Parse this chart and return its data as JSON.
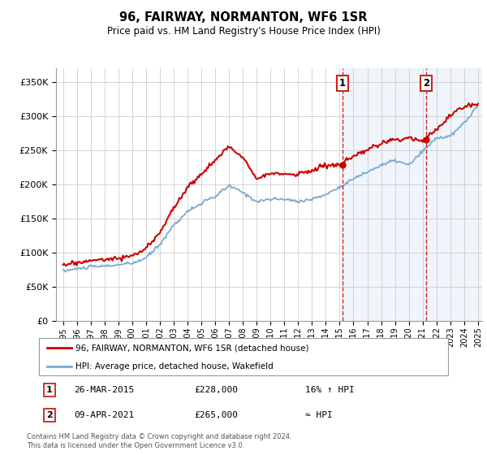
{
  "title": "96, FAIRWAY, NORMANTON, WF6 1SR",
  "subtitle": "Price paid vs. HM Land Registry's House Price Index (HPI)",
  "ylabel_ticks": [
    "£0",
    "£50K",
    "£100K",
    "£150K",
    "£200K",
    "£250K",
    "£300K",
    "£350K"
  ],
  "ytick_values": [
    0,
    50000,
    100000,
    150000,
    200000,
    250000,
    300000,
    350000
  ],
  "ylim": [
    0,
    370000
  ],
  "xlim_start": 1994.5,
  "xlim_end": 2025.3,
  "hpi_color": "#7aaad0",
  "price_color": "#cc0000",
  "marker1_x": 2015.22,
  "marker2_x": 2021.28,
  "marker1_price": 228000,
  "marker2_price": 265000,
  "marker1_date": "26-MAR-2015",
  "marker2_date": "09-APR-2021",
  "marker1_label": "16% ↑ HPI",
  "marker2_label": "≈ HPI",
  "legend_entry1": "96, FAIRWAY, NORMANTON, WF6 1SR (detached house)",
  "legend_entry2": "HPI: Average price, detached house, Wakefield",
  "footer": "Contains HM Land Registry data © Crown copyright and database right 2024.\nThis data is licensed under the Open Government Licence v3.0.",
  "background_color": "#ffffff",
  "plot_bg_color": "#ffffff",
  "shaded_region_color": "#ddeeff",
  "grid_color": "#cccccc",
  "hpi_key_years": [
    1995,
    1996,
    1997,
    1998,
    1999,
    2000,
    2001,
    2002,
    2003,
    2004,
    2005,
    2006,
    2007,
    2008,
    2009,
    2010,
    2011,
    2012,
    2013,
    2014,
    2015,
    2016,
    2017,
    2018,
    2019,
    2020,
    2021,
    2022,
    2023,
    2024,
    2025
  ],
  "hpi_key_vals": [
    73000,
    76000,
    79000,
    80000,
    82000,
    84000,
    92000,
    112000,
    140000,
    160000,
    172000,
    182000,
    198000,
    188000,
    175000,
    178000,
    178000,
    175000,
    178000,
    185000,
    196000,
    208000,
    218000,
    228000,
    235000,
    228000,
    248000,
    268000,
    270000,
    290000,
    315000
  ],
  "price_key_years": [
    1995,
    1996,
    1997,
    1998,
    1999,
    2000,
    2001,
    2002,
    2003,
    2004,
    2005,
    2006,
    2007,
    2008,
    2009,
    2010,
    2011,
    2012,
    2013,
    2014,
    2015,
    2016,
    2017,
    2018,
    2019,
    2020,
    2021,
    2022,
    2023,
    2024,
    2025
  ],
  "price_key_vals": [
    82000,
    85000,
    88000,
    90000,
    92000,
    95000,
    105000,
    130000,
    165000,
    195000,
    215000,
    235000,
    255000,
    240000,
    210000,
    215000,
    215000,
    215000,
    220000,
    228000,
    228000,
    240000,
    250000,
    260000,
    265000,
    268000,
    265000,
    280000,
    300000,
    315000,
    318000
  ]
}
